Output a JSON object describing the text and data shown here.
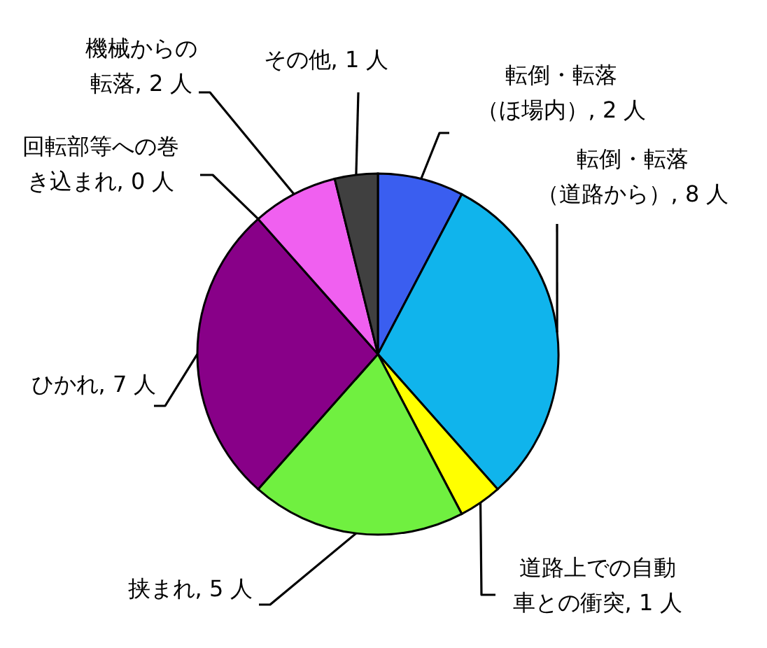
{
  "chart_data": {
    "type": "pie",
    "categories": [
      "転倒・転落（ほ場内）",
      "転倒・転落（道路から）",
      "道路上での自動車との衝突",
      "挟まれ",
      "ひかれ",
      "回転部等への巻き込まれ",
      "機械からの転落",
      "その他"
    ],
    "values": [
      2,
      8,
      1,
      5,
      7,
      0,
      2,
      1
    ],
    "colors": [
      "#3a5ef0",
      "#10b4ec",
      "#ffff00",
      "#70f040",
      "#880088",
      "#ffffff",
      "#f060f0",
      "#404040"
    ],
    "value_labels": [
      ", 2 人",
      ", 8 人",
      ", 1 人",
      ", 5 人",
      ", 7 人",
      ", 0 人",
      ", 2 人",
      ", 1 人"
    ]
  }
}
